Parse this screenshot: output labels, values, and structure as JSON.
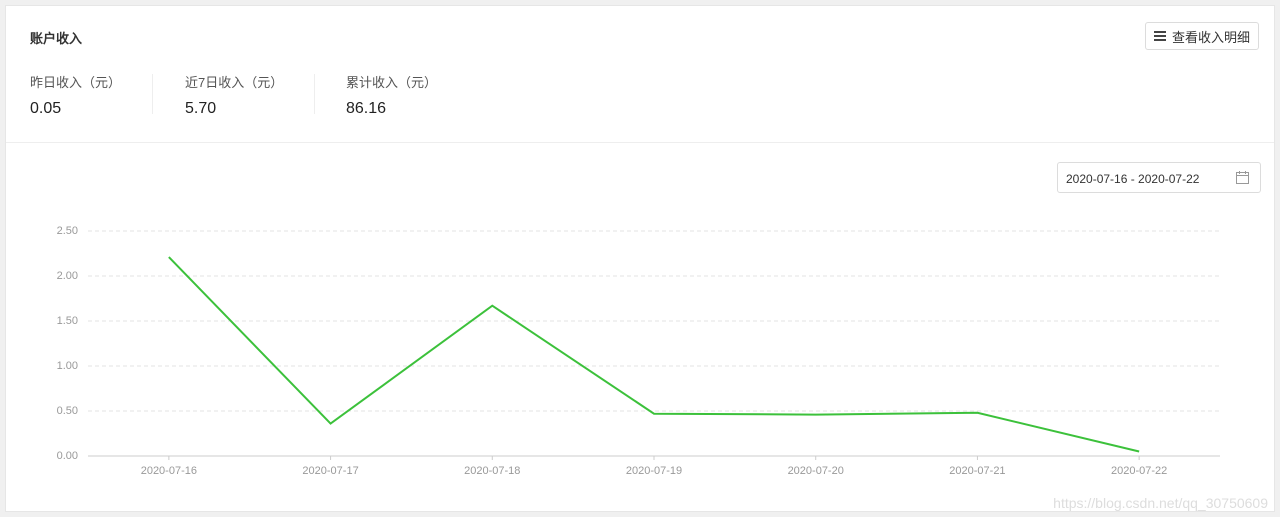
{
  "header": {
    "title": "账户收入",
    "button": "查看收入明细"
  },
  "stats": [
    {
      "label": "昨日收入（元）",
      "value": "0.05"
    },
    {
      "label": "近7日收入（元）",
      "value": "5.70"
    },
    {
      "label": "累计收入（元）",
      "value": "86.16"
    }
  ],
  "date_range": "2020-07-16 - 2020-07-22",
  "chart_data": {
    "type": "line",
    "categories": [
      "2020-07-16",
      "2020-07-17",
      "2020-07-18",
      "2020-07-19",
      "2020-07-20",
      "2020-07-21",
      "2020-07-22"
    ],
    "values": [
      2.21,
      0.36,
      1.67,
      0.47,
      0.46,
      0.48,
      0.05
    ],
    "color": "#3cc13b",
    "ylim": [
      0,
      2.5
    ],
    "yticks": [
      {
        "value": 0,
        "label": "0.00"
      },
      {
        "value": 0.5,
        "label": "0.50"
      },
      {
        "value": 1,
        "label": "1.00"
      },
      {
        "value": 1.5,
        "label": "1.50"
      },
      {
        "value": 2,
        "label": "2.00"
      },
      {
        "value": 2.5,
        "label": "2.50"
      }
    ],
    "grid": true
  },
  "watermark": "https://blog.csdn.net/qq_30750609"
}
